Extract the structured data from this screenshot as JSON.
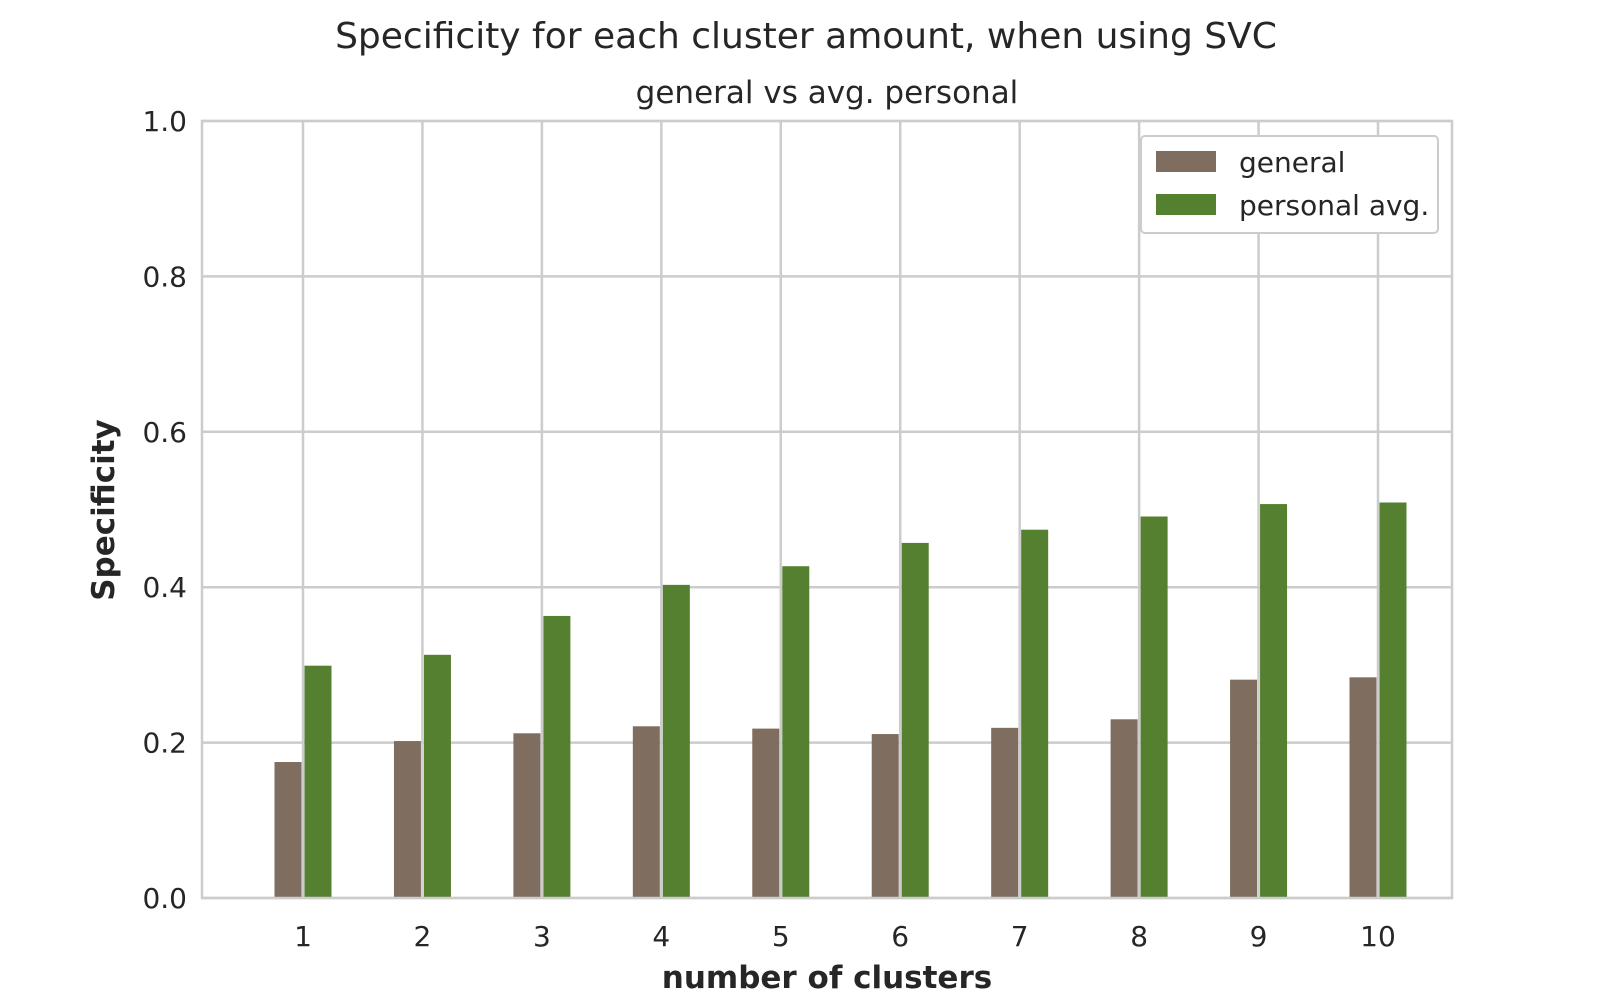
{
  "chart_data": {
    "type": "bar",
    "title": "Specificity for each cluster amount, when using SVC",
    "subtitle": "general vs avg. personal",
    "xlabel": "number of clusters",
    "ylabel": "Specificity",
    "ylim": [
      0,
      1.0
    ],
    "yticks": [
      "0.0",
      "0.2",
      "0.4",
      "0.6",
      "0.8",
      "1.0"
    ],
    "categories": [
      "1",
      "2",
      "3",
      "4",
      "5",
      "6",
      "7",
      "8",
      "9",
      "10"
    ],
    "grid": true,
    "legend_position": "top-right",
    "series": [
      {
        "name": "general",
        "color": "#7f6e5f",
        "values": [
          0.175,
          0.202,
          0.212,
          0.221,
          0.218,
          0.211,
          0.219,
          0.23,
          0.281,
          0.284
        ]
      },
      {
        "name": "personal avg.",
        "color": "#548030",
        "values": [
          0.299,
          0.313,
          0.363,
          0.403,
          0.427,
          0.457,
          0.474,
          0.491,
          0.507,
          0.509
        ]
      }
    ]
  }
}
